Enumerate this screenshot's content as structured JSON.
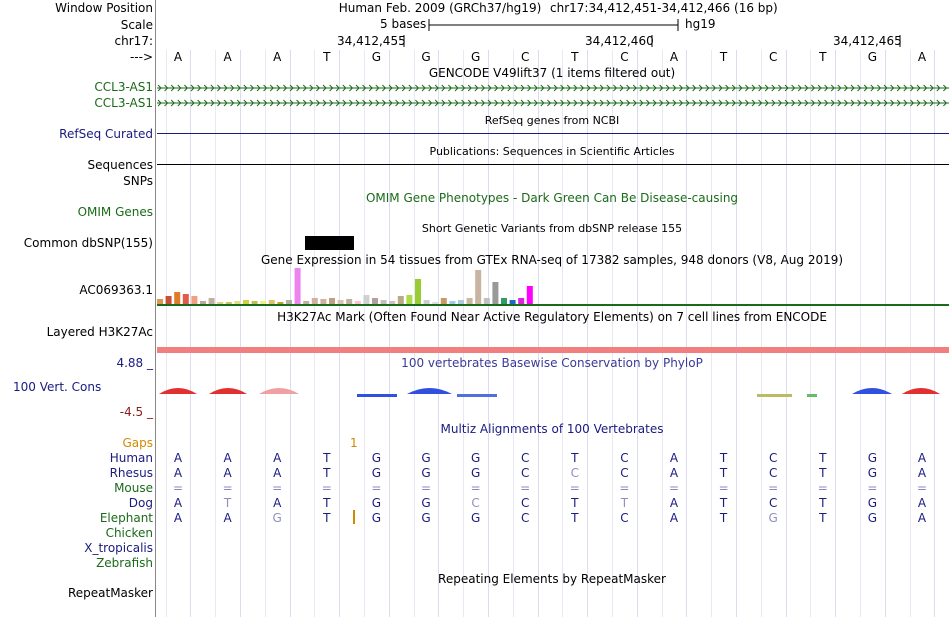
{
  "header": {
    "window_position_label": "Window Position",
    "assembly_text": "Human Feb. 2009 (GRCh37/hg19)",
    "position_text": "chr17:34,412,451-34,412,466 (16 bp)",
    "scale_label": "Scale",
    "scale_text": "5 bases",
    "scale_db": "hg19",
    "chrom_label": "chr17:",
    "ticks": [
      "34,412,455",
      "34,412,460",
      "34,412,465"
    ],
    "strand_label": "--->",
    "bases": [
      "A",
      "A",
      "A",
      "T",
      "G",
      "G",
      "G",
      "C",
      "T",
      "C",
      "A",
      "T",
      "C",
      "T",
      "G",
      "A"
    ]
  },
  "tracks": {
    "gencode": {
      "title": "GENCODE V49lift37 (1 items filtered out)",
      "items": [
        "CCL3-AS1",
        "CCL3-AS1"
      ]
    },
    "refseq": {
      "label": "RefSeq Curated",
      "title": "RefSeq genes from NCBI"
    },
    "sequences": {
      "label": "Sequences",
      "title": "Publications: Sequences in Scientific Articles"
    },
    "snps": {
      "label": "SNPs"
    },
    "omim": {
      "label": "OMIM Genes",
      "title": "OMIM Gene Phenotypes - Dark Green Can Be Disease-causing"
    },
    "dbsnp": {
      "label": "Common dbSNP(155)",
      "title": "Short Genetic Variants from dbSNP release 155"
    },
    "gtex": {
      "label": "AC069363.1",
      "title": "Gene Expression in 54 tissues from GTEx RNA-seq of 17382 samples, 948 donors (V8, Aug 2019)"
    },
    "h3k27ac": {
      "label": "Layered H3K27Ac",
      "title": "H3K27Ac Mark (Often Found Near Active Regulatory Elements) on 7 cell lines from ENCODE"
    },
    "cons": {
      "label": "100 Vert. Cons",
      "max_text": "4.88 _",
      "min_text": "-4.5 _",
      "title": "100 vertebrates Basewise Conservation by PhyloP"
    },
    "multiz": {
      "title": "Multiz Alignments of 100 Vertebrates",
      "gaps_label": "Gaps",
      "gaps_mark": "1",
      "species": [
        {
          "name": "Human",
          "color": "#1a1a80",
          "bases": [
            "A",
            "A",
            "A",
            "T",
            "G",
            "G",
            "G",
            "C",
            "T",
            "C",
            "A",
            "T",
            "C",
            "T",
            "G",
            "A"
          ]
        },
        {
          "name": "Rhesus",
          "color": "#1a1a80",
          "bases": [
            "A",
            "A",
            "A",
            "T",
            "G",
            "G",
            "G",
            "C",
            "C",
            "C",
            "A",
            "T",
            "C",
            "T",
            "G",
            "A"
          ]
        },
        {
          "name": "Mouse",
          "color": "#1a6a1a",
          "bases": [
            "=",
            "=",
            "=",
            "=",
            "=",
            "=",
            "=",
            "=",
            "=",
            "=",
            "=",
            "=",
            "=",
            "=",
            "=",
            "="
          ]
        },
        {
          "name": "Dog",
          "color": "#1a1a80",
          "bases": [
            "A",
            "T",
            "A",
            "T",
            "G",
            "G",
            "C",
            "C",
            "T",
            "T",
            "A",
            "T",
            "C",
            "T",
            "G",
            "A"
          ]
        },
        {
          "name": "Elephant",
          "color": "#1a6a1a",
          "bases": [
            "A",
            "A",
            "G",
            "T",
            "G",
            "G",
            "G",
            "C",
            "T",
            "C",
            "A",
            "T",
            "G",
            "T",
            "G",
            "A"
          ]
        },
        {
          "name": "Chicken",
          "color": "#1a6a1a",
          "bases": []
        },
        {
          "name": "X_tropicalis",
          "color": "#1a1a80",
          "bases": []
        },
        {
          "name": "Zebrafish",
          "color": "#1a6a1a",
          "bases": []
        }
      ]
    },
    "rmsk": {
      "label": "RepeatMasker",
      "title": "Repeating Elements by RepeatMasker"
    }
  }
}
